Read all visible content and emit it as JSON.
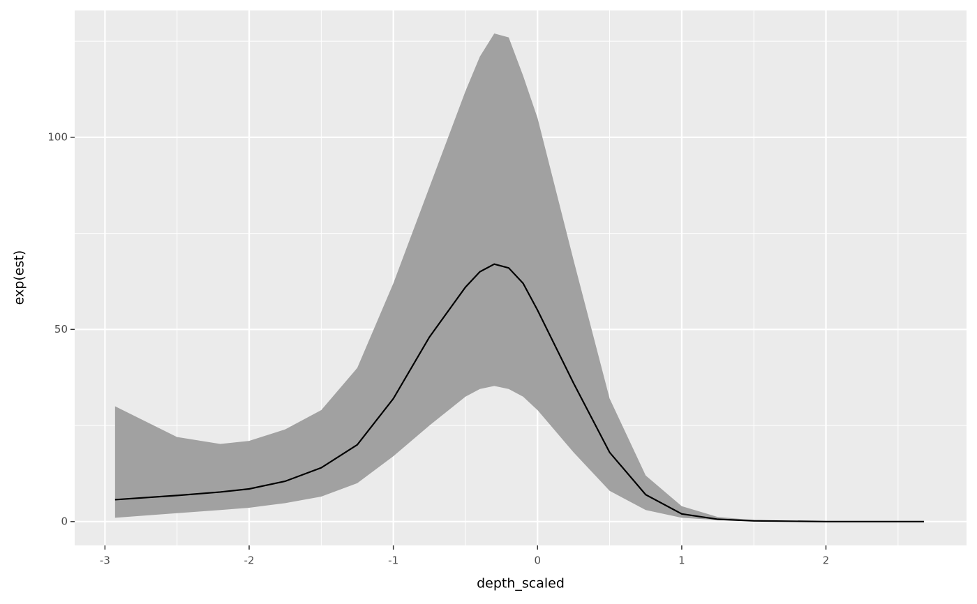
{
  "chart_data": {
    "type": "line",
    "x_label": "depth_scaled",
    "y_label": "exp(est)",
    "x": [
      -2.93,
      -2.5,
      -2.2,
      -2,
      -1.75,
      -1.5,
      -1.25,
      -1,
      -0.75,
      -0.5,
      -0.4,
      -0.3,
      -0.2,
      -0.1,
      0,
      0.25,
      0.5,
      0.75,
      1,
      1.25,
      1.5,
      2,
      2.68
    ],
    "series": [
      {
        "color": "#000000",
        "values": [
          5.7,
          6.8,
          7.7,
          8.5,
          10.5,
          14,
          20,
          32,
          48,
          61,
          65,
          67,
          66,
          62,
          55,
          36,
          18,
          7,
          2,
          0.6,
          0.2,
          0,
          0
        ]
      }
    ],
    "ribbon": {
      "color": "#a1a1a1",
      "upper": [
        30,
        22,
        20.2,
        21,
        24,
        29,
        40,
        62,
        87,
        112,
        121,
        127,
        126,
        116,
        105,
        68,
        32,
        12,
        4,
        1.2,
        0.4,
        0,
        0
      ],
      "lower": [
        1,
        2.2,
        3,
        3.6,
        4.8,
        6.5,
        10,
        17,
        25,
        32.5,
        34.5,
        35.3,
        34.5,
        32.5,
        29,
        18,
        8,
        3,
        1,
        0.4,
        0.1,
        0,
        0
      ]
    },
    "xlim": [
      -3.21,
      2.975
    ],
    "ylim": [
      -6.2,
      133
    ],
    "xticks": [
      -3,
      -2,
      -1,
      0,
      1,
      2
    ],
    "yticks": [
      0,
      50,
      100
    ],
    "grid": true
  }
}
